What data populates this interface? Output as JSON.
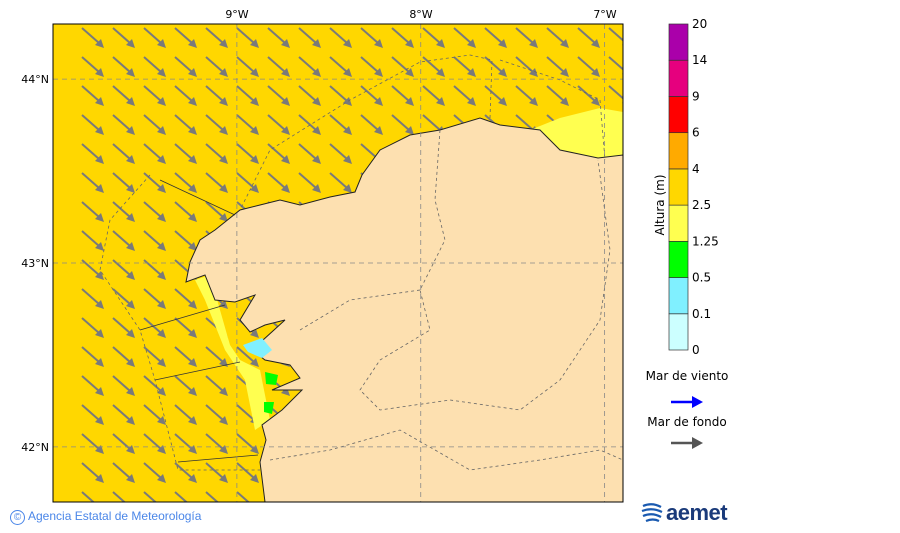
{
  "map": {
    "lon_labels": [
      "9°W",
      "8°W",
      "7°W"
    ],
    "lat_labels": [
      "44°N",
      "43°N",
      "42°N"
    ],
    "extent": {
      "lon": [
        -10,
        -6.9
      ],
      "lat": [
        41.7,
        44.3
      ]
    },
    "sea_color": "#ffd700",
    "land_color": "#fde0b0",
    "swell_arrow_color": "#7a7a7a",
    "swell_direction": "from northwest to southeast"
  },
  "legend": {
    "title": "Altura (m)",
    "levels": [
      "0",
      "0.1",
      "0.5",
      "1.25",
      "2.5",
      "4",
      "6",
      "9",
      "14",
      "20"
    ],
    "colors": [
      "#ccffff",
      "#80f0ff",
      "#00ff00",
      "#ffff50",
      "#ffd700",
      "#ffaa00",
      "#ff0000",
      "#e6007e",
      "#aa00aa"
    ],
    "wind_sea_label": "Mar de viento",
    "wind_sea_color": "#0000ff",
    "swell_label": "Mar de fondo",
    "swell_color": "#555555"
  },
  "footer": {
    "copyright_symbol": "©",
    "credit": "Agencia Estatal de Meteorología",
    "logo_text": "aemet"
  }
}
